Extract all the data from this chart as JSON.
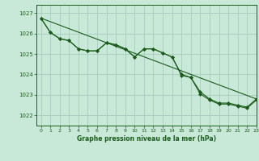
{
  "title": "Graphe pression niveau de la mer (hPa)",
  "bg_color": "#c8e8d8",
  "grid_color": "#a8ccc0",
  "line_color": "#1a5c1a",
  "marker_color": "#1a5c1a",
  "xlim": [
    -0.5,
    23
  ],
  "ylim": [
    1021.5,
    1027.4
  ],
  "yticks": [
    1022,
    1023,
    1024,
    1025,
    1026,
    1027
  ],
  "xticks": [
    0,
    1,
    2,
    3,
    4,
    5,
    6,
    7,
    8,
    9,
    10,
    11,
    12,
    13,
    14,
    15,
    16,
    17,
    18,
    19,
    20,
    21,
    22,
    23
  ],
  "series_main_x": [
    0,
    1,
    2,
    3,
    4,
    5,
    6,
    7,
    8,
    9,
    10,
    11,
    12,
    13,
    14,
    15,
    16,
    17,
    18,
    19,
    20,
    21,
    22,
    23
  ],
  "series_main_y": [
    1026.75,
    1026.05,
    1025.75,
    1025.65,
    1025.25,
    1025.15,
    1025.15,
    1025.55,
    1025.45,
    1025.25,
    1024.85,
    1025.25,
    1025.25,
    1025.05,
    1024.85,
    1023.95,
    1023.85,
    1023.05,
    1022.75,
    1022.55,
    1022.55,
    1022.45,
    1022.35,
    1022.75
  ],
  "series_upper_x": [
    0,
    1,
    2,
    3,
    4,
    5,
    6,
    7,
    8,
    9,
    10,
    11,
    12,
    13,
    14,
    15,
    16,
    17,
    18,
    19,
    20,
    21,
    22,
    23
  ],
  "series_upper_y": [
    1026.75,
    1026.05,
    1025.75,
    1025.65,
    1025.25,
    1025.15,
    1025.15,
    1025.55,
    1025.45,
    1025.25,
    1024.85,
    1025.25,
    1025.25,
    1025.05,
    1024.85,
    1024.0,
    1023.85,
    1023.15,
    1022.8,
    1022.6,
    1022.6,
    1022.5,
    1022.4,
    1022.8
  ],
  "trend_x": [
    0,
    23
  ],
  "trend_y": [
    1026.75,
    1022.8
  ]
}
